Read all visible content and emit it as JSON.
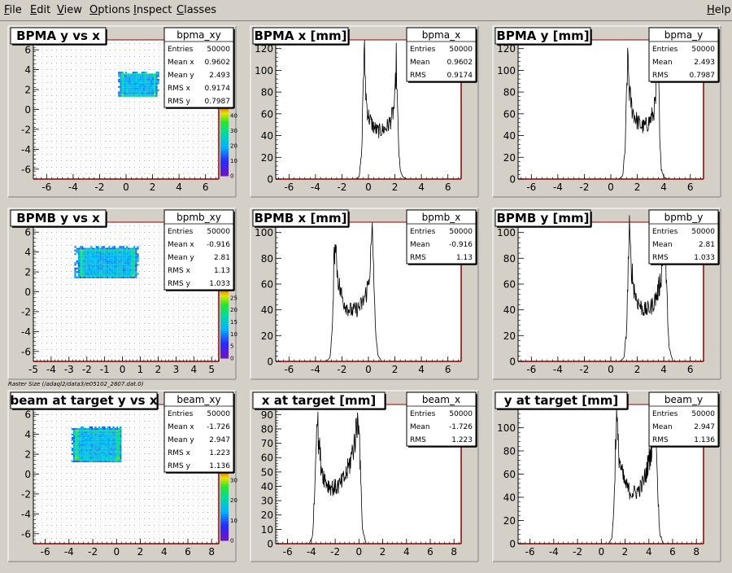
{
  "menu": {
    "file": "File",
    "edit": "Edit",
    "view": "View",
    "options": "Options",
    "inspect": "Inspect",
    "classes": "Classes",
    "help": "Help"
  },
  "raster_caption": "Raster Size (/adaql2/data3/e05102_2807.dat.0)",
  "colors": {
    "frame": "#8b0000",
    "histogram": "#000000",
    "background": "#d4d0c8"
  },
  "chart_data": [
    {
      "type": "heatmap",
      "title": "BPMA y vs x",
      "stat_name": "bpma_xy",
      "stats": [
        [
          "Entries",
          "50000"
        ],
        [
          "Mean x",
          "0.9602"
        ],
        [
          "Mean y",
          "2.493"
        ],
        [
          "RMS x",
          "0.9174"
        ],
        [
          "RMS y",
          "0.7987"
        ]
      ],
      "xlim": [
        -7,
        7
      ],
      "ylim": [
        -7,
        7
      ],
      "xticks": [
        -6,
        -4,
        -2,
        0,
        2,
        4,
        6
      ],
      "yticks": [
        -6,
        -4,
        -2,
        0,
        2,
        4,
        6
      ],
      "blob": {
        "x": [
          -0.6,
          2.4
        ],
        "y": [
          1.3,
          3.8
        ]
      },
      "palette_ticks": [
        0,
        10,
        20,
        30,
        40
      ],
      "palette_max": 48
    },
    {
      "type": "line",
      "title": "BPMA x [mm]",
      "stat_name": "bpma_x",
      "stats": [
        [
          "Entries",
          "50000"
        ],
        [
          "Mean",
          "0.9602"
        ],
        [
          "RMS",
          "0.9174"
        ]
      ],
      "xlim": [
        -7,
        7
      ],
      "ylim": [
        0,
        128
      ],
      "xticks": [
        -6,
        -4,
        -2,
        0,
        2,
        4,
        6
      ],
      "yticks": [
        0,
        20,
        40,
        60,
        80,
        100,
        120
      ],
      "x": [
        -1,
        -0.7,
        -0.5,
        -0.4,
        -0.3,
        -0.2,
        -0.1,
        0,
        0.2,
        0.4,
        0.6,
        0.8,
        1.0,
        1.2,
        1.4,
        1.6,
        1.8,
        2.0,
        2.1,
        2.2,
        2.3,
        2.4,
        2.6,
        2.9
      ],
      "values": [
        0,
        2,
        25,
        90,
        115,
        80,
        65,
        58,
        52,
        48,
        45,
        44,
        45,
        46,
        48,
        52,
        58,
        70,
        110,
        60,
        25,
        8,
        2,
        0
      ]
    },
    {
      "type": "line",
      "title": "BPMA y [mm]",
      "stat_name": "bpma_y",
      "stats": [
        [
          "Entries",
          "50000"
        ],
        [
          "Mean",
          "2.493"
        ],
        [
          "RMS",
          "0.7987"
        ]
      ],
      "xlim": [
        -7,
        7
      ],
      "ylim": [
        0,
        128
      ],
      "xticks": [
        -6,
        -4,
        -2,
        0,
        2,
        4,
        6
      ],
      "yticks": [
        0,
        20,
        40,
        60,
        80,
        100,
        120
      ],
      "x": [
        0.6,
        0.9,
        1.1,
        1.2,
        1.3,
        1.4,
        1.6,
        1.8,
        2.0,
        2.2,
        2.4,
        2.6,
        2.8,
        3.0,
        3.2,
        3.4,
        3.5,
        3.6,
        3.7,
        3.8,
        4.0,
        4.3
      ],
      "values": [
        0,
        3,
        30,
        85,
        112,
        80,
        65,
        58,
        53,
        50,
        48,
        49,
        51,
        55,
        60,
        72,
        112,
        95,
        40,
        10,
        2,
        0
      ]
    },
    {
      "type": "heatmap",
      "title": "BPMB y vs x",
      "stat_name": "bpmb_xy",
      "stats": [
        [
          "Entries",
          "50000"
        ],
        [
          "Mean x",
          "-0.916"
        ],
        [
          "Mean y",
          "2.81"
        ],
        [
          "RMS x",
          "1.13"
        ],
        [
          "RMS y",
          "1.033"
        ]
      ],
      "xlim": [
        -5,
        5.4
      ],
      "ylim": [
        -7,
        7
      ],
      "xticks": [
        -5,
        -4,
        -3,
        -2,
        -1,
        0,
        1,
        2,
        3,
        4,
        5
      ],
      "yticks": [
        -6,
        -4,
        -2,
        0,
        2,
        4,
        6
      ],
      "blob": {
        "x": [
          -2.7,
          0.9
        ],
        "y": [
          1.4,
          4.6
        ]
      },
      "palette_ticks": [
        0,
        5,
        10,
        15,
        20,
        25
      ],
      "palette_max": 30
    },
    {
      "type": "line",
      "title": "BPMB x [mm]",
      "stat_name": "bpmb_x",
      "stats": [
        [
          "Entries",
          "50000"
        ],
        [
          "Mean",
          "-0.916"
        ],
        [
          "RMS",
          "1.13"
        ]
      ],
      "xlim": [
        -7,
        7
      ],
      "ylim": [
        0,
        108
      ],
      "xticks": [
        -6,
        -4,
        -2,
        0,
        2,
        4,
        6
      ],
      "yticks": [
        0,
        20,
        40,
        60,
        80,
        100
      ],
      "x": [
        -3.2,
        -2.9,
        -2.7,
        -2.6,
        -2.5,
        -2.4,
        -2.2,
        -2.0,
        -1.8,
        -1.6,
        -1.4,
        -1.2,
        -1.0,
        -0.8,
        -0.6,
        -0.4,
        -0.2,
        0,
        0.2,
        0.3,
        0.4,
        0.5,
        0.7,
        1.0
      ],
      "values": [
        0,
        3,
        30,
        80,
        100,
        75,
        58,
        50,
        45,
        42,
        40,
        39,
        40,
        41,
        43,
        46,
        52,
        60,
        85,
        98,
        70,
        30,
        5,
        0
      ]
    },
    {
      "type": "line",
      "title": "BPMB y [mm]",
      "stat_name": "bpmb_y",
      "stats": [
        [
          "Entries",
          "50000"
        ],
        [
          "Mean",
          "2.81"
        ],
        [
          "RMS",
          "1.033"
        ]
      ],
      "xlim": [
        -7,
        7
      ],
      "ylim": [
        0,
        108
      ],
      "xticks": [
        -6,
        -4,
        -2,
        0,
        2,
        4,
        6
      ],
      "yticks": [
        0,
        20,
        40,
        60,
        80,
        100
      ],
      "x": [
        0.7,
        1.0,
        1.2,
        1.3,
        1.4,
        1.5,
        1.7,
        1.9,
        2.1,
        2.3,
        2.5,
        2.7,
        2.9,
        3.1,
        3.3,
        3.5,
        3.7,
        3.9,
        4.0,
        4.1,
        4.2,
        4.4,
        4.7
      ],
      "values": [
        0,
        3,
        25,
        70,
        100,
        80,
        60,
        50,
        45,
        42,
        40,
        40,
        41,
        43,
        47,
        52,
        60,
        75,
        95,
        100,
        60,
        10,
        0
      ]
    },
    {
      "type": "heatmap",
      "title": "beam at target y vs x",
      "stat_name": "beam_xy",
      "stats": [
        [
          "Entries",
          "50000"
        ],
        [
          "Mean x",
          "-1.726"
        ],
        [
          "Mean y",
          "2.947"
        ],
        [
          "RMS x",
          "1.223"
        ],
        [
          "RMS y",
          "1.136"
        ]
      ],
      "xlim": [
        -7,
        8.6
      ],
      "ylim": [
        -7,
        7
      ],
      "xticks": [
        -6,
        -4,
        -2,
        0,
        2,
        4,
        6,
        8
      ],
      "yticks": [
        -6,
        -4,
        -2,
        0,
        2,
        4,
        6
      ],
      "blob": {
        "x": [
          -3.8,
          0.4
        ],
        "y": [
          1.2,
          4.8
        ]
      },
      "palette_ticks": [
        0,
        10,
        20,
        30
      ],
      "palette_max": 36
    },
    {
      "type": "line",
      "title": "x at target [mm]",
      "stat_name": "beam_x",
      "stats": [
        [
          "Entries",
          "50000"
        ],
        [
          "Mean",
          "-1.726"
        ],
        [
          "RMS",
          "1.223"
        ]
      ],
      "xlim": [
        -7,
        8.6
      ],
      "ylim": [
        0,
        97
      ],
      "xticks": [
        -6,
        -4,
        -2,
        0,
        2,
        4,
        6,
        8
      ],
      "yticks": [
        0,
        10,
        20,
        30,
        40,
        50,
        60,
        70,
        80,
        90
      ],
      "x": [
        -4.2,
        -3.9,
        -3.7,
        -3.6,
        -3.5,
        -3.4,
        -3.2,
        -3.0,
        -2.8,
        -2.6,
        -2.4,
        -2.2,
        -2.0,
        -1.8,
        -1.6,
        -1.4,
        -1.2,
        -1.0,
        -0.8,
        -0.6,
        -0.4,
        -0.2,
        0,
        0.1,
        0.3,
        0.6
      ],
      "values": [
        0,
        5,
        40,
        80,
        90,
        72,
        56,
        48,
        44,
        41,
        40,
        39,
        39,
        40,
        41,
        43,
        46,
        50,
        55,
        62,
        70,
        80,
        92,
        55,
        10,
        0
      ]
    },
    {
      "type": "line",
      "title": "y at target [mm]",
      "stat_name": "beam_y",
      "stats": [
        [
          "Entries",
          "50000"
        ],
        [
          "Mean",
          "2.947"
        ],
        [
          "RMS",
          "1.136"
        ]
      ],
      "xlim": [
        -7,
        8.6
      ],
      "ylim": [
        0,
        120
      ],
      "xticks": [
        -6,
        -4,
        -2,
        0,
        2,
        4,
        6,
        8
      ],
      "yticks": [
        0,
        20,
        40,
        60,
        80,
        100
      ],
      "x": [
        0.6,
        0.9,
        1.1,
        1.2,
        1.3,
        1.4,
        1.6,
        1.8,
        2.0,
        2.2,
        2.4,
        2.6,
        2.8,
        3.0,
        3.2,
        3.4,
        3.6,
        3.8,
        4.0,
        4.2,
        4.4,
        4.6,
        4.7,
        4.9,
        5.2
      ],
      "values": [
        0,
        5,
        40,
        90,
        110,
        85,
        68,
        58,
        52,
        48,
        45,
        44,
        44,
        45,
        47,
        50,
        55,
        62,
        72,
        82,
        95,
        105,
        60,
        10,
        0
      ]
    }
  ]
}
